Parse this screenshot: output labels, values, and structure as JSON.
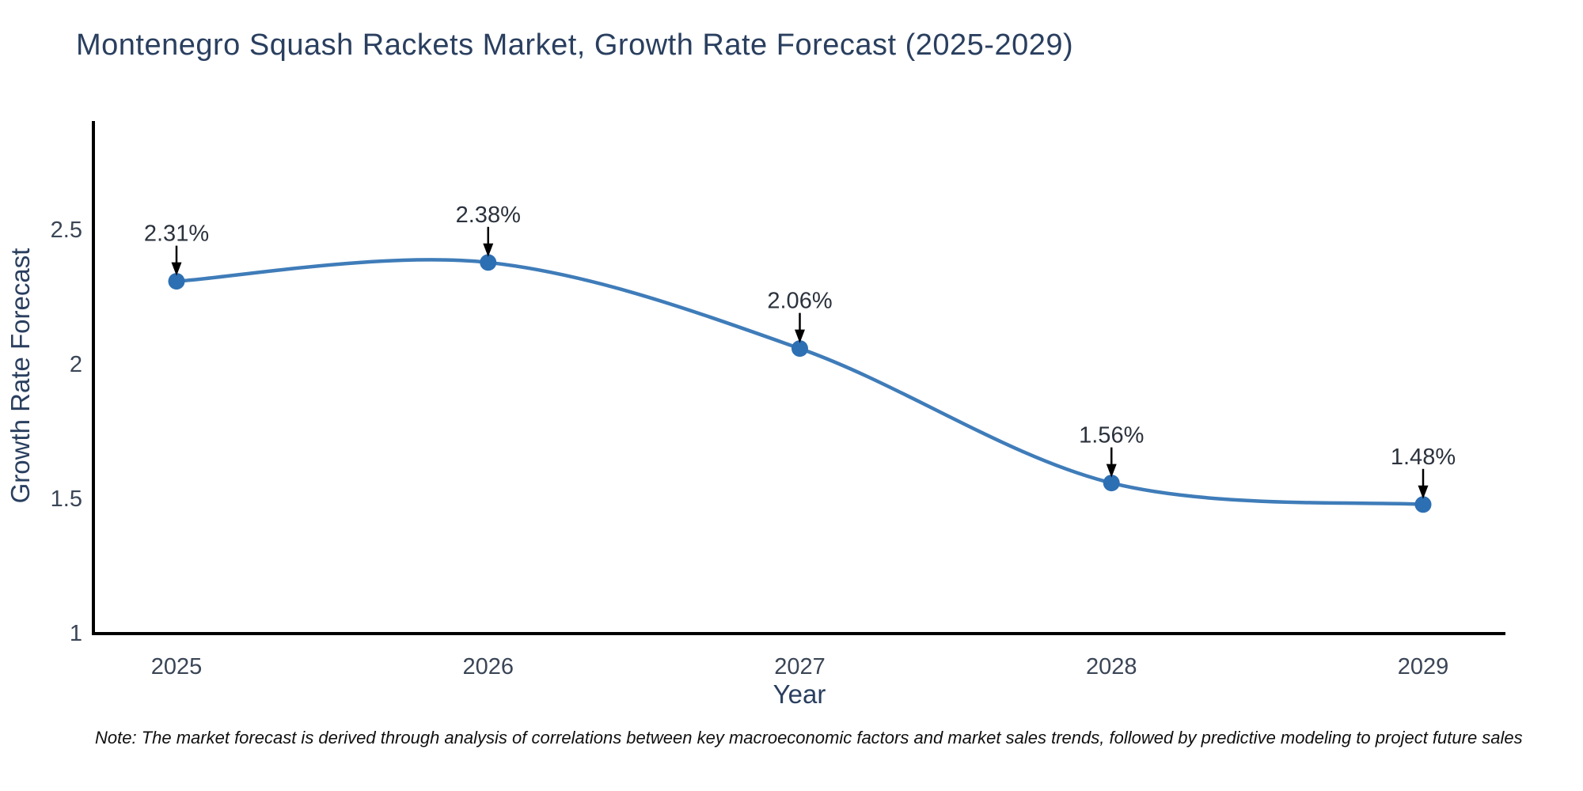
{
  "page": {
    "background": "#ffffff"
  },
  "chart_data": {
    "type": "line",
    "title": "Montenegro Squash Rackets Market, Growth Rate Forecast (2025-2029)",
    "xlabel": "Year",
    "ylabel": "Growth Rate Forecast",
    "categories": [
      "2025",
      "2026",
      "2027",
      "2028",
      "2029"
    ],
    "series": [
      {
        "name": "Growth Rate Forecast",
        "values": [
          2.31,
          2.38,
          2.06,
          1.56,
          1.48
        ],
        "point_labels": [
          "2.31%",
          "2.38%",
          "2.06%",
          "1.56%",
          "1.48%"
        ]
      }
    ],
    "line_shape": "spline",
    "markers": true,
    "grid": false,
    "legend_position": "none",
    "ylim": [
      1,
      2.9
    ],
    "y_tick_values": [
      1,
      1.5,
      2,
      2.5
    ],
    "y_tick_labels": [
      "1",
      "1.5",
      "2",
      "2.5"
    ],
    "annotations_have_arrows": true,
    "colors": {
      "line": "#3f7cb9",
      "marker": "#2d6fb3",
      "axis_line": "#000000",
      "arrow": "#000000",
      "tick_label": "#3a4556",
      "annotation_text": "#2b323d",
      "title": "#2a3f5f",
      "axis_title": "#2a3f5f",
      "note_text": "#101010",
      "background": "#ffffff"
    }
  },
  "note": {
    "text": "Note: The market forecast is derived through analysis of correlations between key macroeconomic factors and market sales trends, followed by predictive modeling to project future sales"
  }
}
